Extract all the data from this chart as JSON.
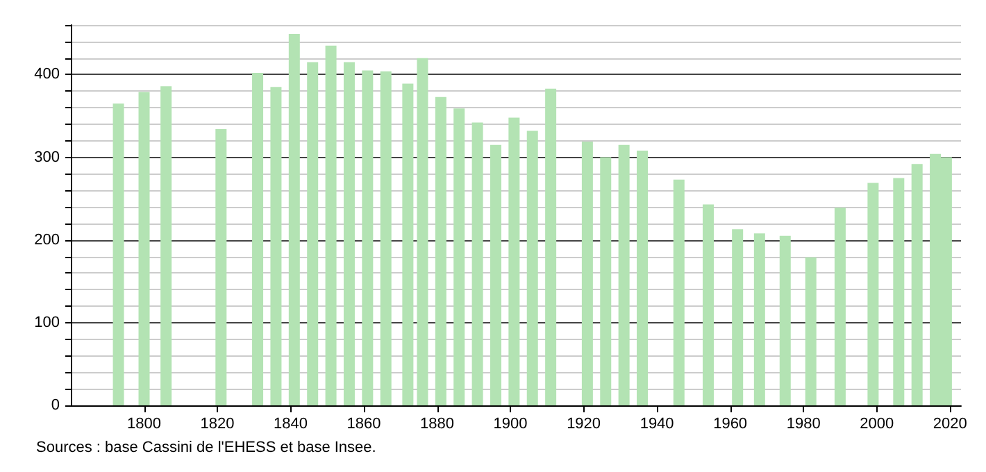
{
  "chart_data": {
    "type": "bar",
    "x": [
      1793,
      1800,
      1806,
      1821,
      1831,
      1836,
      1841,
      1846,
      1851,
      1856,
      1861,
      1866,
      1872,
      1876,
      1881,
      1886,
      1891,
      1896,
      1901,
      1906,
      1911,
      1921,
      1926,
      1931,
      1936,
      1946,
      1954,
      1962,
      1968,
      1975,
      1982,
      1990,
      1999,
      2006,
      2011,
      2016,
      2019
    ],
    "values": [
      365,
      379,
      386,
      334,
      402,
      385,
      449,
      415,
      435,
      415,
      405,
      404,
      389,
      420,
      373,
      359,
      342,
      315,
      348,
      332,
      383,
      319,
      300,
      315,
      308,
      273,
      243,
      213,
      208,
      205,
      179,
      239,
      269,
      275,
      292,
      304,
      300
    ],
    "color": "#b3e3b3",
    "xlim": [
      1780,
      2023
    ],
    "xticks": [
      1800,
      1820,
      1840,
      1860,
      1880,
      1900,
      1920,
      1940,
      1960,
      1980,
      2000,
      2020
    ],
    "ylim": [
      0,
      460
    ],
    "yticks": [
      0,
      {
        "value": 20,
        "label": null
      },
      {
        "value": 40,
        "label": null
      },
      {
        "value": 60,
        "label": null
      },
      {
        "value": 80,
        "label": null
      },
      100,
      {
        "value": 120,
        "label": null
      },
      {
        "value": 140,
        "label": null
      },
      {
        "value": 160,
        "label": null
      },
      {
        "value": 180,
        "label": null
      },
      200,
      {
        "value": 220,
        "label": null
      },
      {
        "value": 240,
        "label": null
      },
      {
        "value": 260,
        "label": null
      },
      {
        "value": 280,
        "label": null
      },
      300,
      {
        "value": 320,
        "label": null
      },
      {
        "value": 340,
        "label": null
      },
      {
        "value": 360,
        "label": null
      },
      {
        "value": 380,
        "label": null
      },
      400,
      {
        "value": 420,
        "label": null
      },
      {
        "value": 440,
        "label": null
      },
      {
        "value": 460,
        "label": null
      }
    ],
    "grid": "y",
    "annotations": [
      "Sources : base Cassini de l'EHESS et base Insee."
    ]
  }
}
